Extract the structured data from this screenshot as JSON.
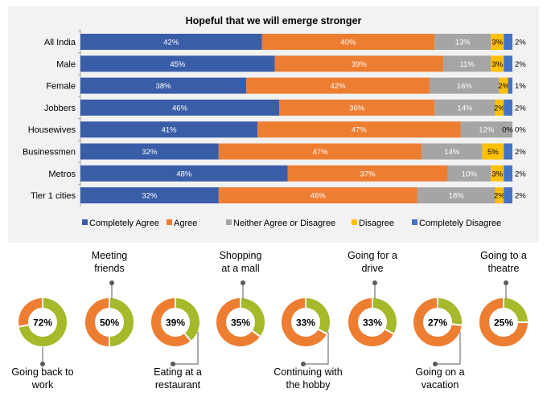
{
  "chart_data": [
    {
      "type": "bar",
      "stacked": true,
      "orientation": "horizontal",
      "title": "Hopeful that we will emerge stronger",
      "categories": [
        "All India",
        "Male",
        "Female",
        "Jobbers",
        "Housewives",
        "Businessmen",
        "Metros",
        "Tier 1 cities"
      ],
      "series": [
        {
          "name": "Completely Agree",
          "color": "#3A5DA8",
          "values": [
            42,
            45,
            38,
            46,
            41,
            32,
            48,
            32
          ]
        },
        {
          "name": "Agree",
          "color": "#ED7D31",
          "values": [
            40,
            39,
            42,
            36,
            47,
            47,
            37,
            46
          ]
        },
        {
          "name": "Neither Agree or Disagree",
          "color": "#A5A5A5",
          "values": [
            13,
            11,
            16,
            14,
            12,
            14,
            10,
            18
          ]
        },
        {
          "name": "Disagree",
          "color": "#FFC000",
          "values": [
            3,
            3,
            2,
            2,
            0,
            5,
            3,
            2
          ]
        },
        {
          "name": "Completely Disagree",
          "color": "#4472C4",
          "values": [
            2,
            2,
            1,
            2,
            0,
            2,
            2,
            2
          ]
        }
      ],
      "legend": "bottom",
      "value_suffix": "%"
    },
    {
      "type": "pie",
      "variant": "donut",
      "items": [
        {
          "label": "Going back to work",
          "value": 72
        },
        {
          "label": "Meeting friends",
          "value": 50
        },
        {
          "label": "Eating at a restaurant",
          "value": 39
        },
        {
          "label": "Shopping at a mall",
          "value": 35
        },
        {
          "label": "Continuing with the hobby",
          "value": 33
        },
        {
          "label": "Going for a drive",
          "value": 33
        },
        {
          "label": "Going on a vacation",
          "value": 27
        },
        {
          "label": "Going to a theatre",
          "value": 25
        }
      ],
      "colors": {
        "value": "#A5B92A",
        "remainder": "#ED7D31"
      },
      "value_suffix": "%"
    }
  ]
}
